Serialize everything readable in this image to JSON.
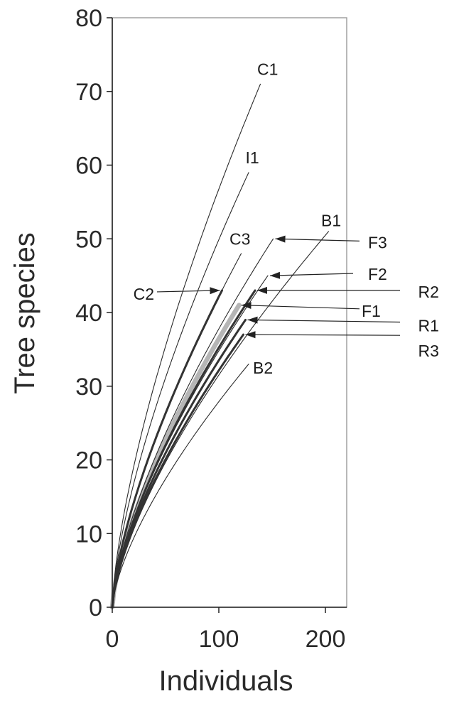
{
  "chart_data": {
    "type": "line",
    "title": "",
    "xlabel": "Individuals",
    "ylabel": "Tree species",
    "xlim": [
      0,
      220
    ],
    "ylim": [
      0,
      80
    ],
    "x_ticks": [
      "0",
      "100",
      "200"
    ],
    "y_ticks": [
      "0",
      "10",
      "20",
      "30",
      "40",
      "50",
      "60",
      "70",
      "80"
    ],
    "grid": false,
    "legend": "none",
    "colors": {
      "thin": "#2a2a2a",
      "thick": "#333333",
      "highlight": "#b5b5b5",
      "arrow": "#222222"
    },
    "series": [
      {
        "name": "C1",
        "max_x": 139,
        "max_y": 71,
        "style": "thin",
        "label_at": [
          136,
          73
        ],
        "arrow_from": null
      },
      {
        "name": "I1",
        "max_x": 128,
        "max_y": 59,
        "style": "thin",
        "label_at": [
          125,
          61
        ],
        "arrow_from": null
      },
      {
        "name": "C3",
        "max_x": 121,
        "max_y": 48,
        "style": "thin",
        "label_at": [
          110,
          50
        ],
        "arrow_from": null
      },
      {
        "name": "B1",
        "max_x": 203,
        "max_y": 51,
        "style": "thin",
        "label_at": [
          196,
          52.5
        ],
        "arrow_from": null
      },
      {
        "name": "C2",
        "max_x": 103,
        "max_y": 43,
        "style": "thick",
        "label_at": [
          32,
          42.5
        ],
        "arrow_from": [
          42,
          42.8
        ]
      },
      {
        "name": "F3",
        "max_x": 151,
        "max_y": 50,
        "style": "thin",
        "label_at": [
          240,
          49.5
        ],
        "arrow_from": [
          232,
          49.7
        ]
      },
      {
        "name": "F2",
        "max_x": 146,
        "max_y": 45,
        "style": "thin",
        "label_at": [
          240,
          45.2
        ],
        "arrow_from": [
          226,
          45.3
        ]
      },
      {
        "name": "R2",
        "max_x": 134,
        "max_y": 43,
        "style": "thick",
        "label_at": [
          287,
          42.8
        ],
        "arrow_from": [
          270,
          43
        ]
      },
      {
        "name": "F1",
        "max_x": 119,
        "max_y": 41,
        "style": "highlight",
        "label_at": [
          234,
          40.2
        ],
        "arrow_from": [
          232,
          40.5
        ]
      },
      {
        "name": "R1",
        "max_x": 125,
        "max_y": 39,
        "style": "thick",
        "label_at": [
          287,
          38.2
        ],
        "arrow_from": [
          270,
          38.7
        ]
      },
      {
        "name": "R3",
        "max_x": 123,
        "max_y": 37,
        "style": "thick",
        "label_at": [
          287,
          34.8
        ],
        "arrow_from": [
          270,
          36.9
        ]
      },
      {
        "name": "B2",
        "max_x": 128,
        "max_y": 33,
        "style": "thin",
        "label_at": [
          132,
          32.5
        ],
        "arrow_from": null
      }
    ]
  }
}
